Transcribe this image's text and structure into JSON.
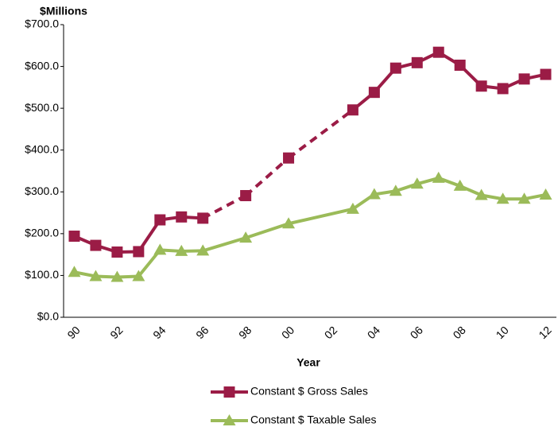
{
  "chart_data": {
    "type": "line",
    "title": "$Millions",
    "x_label": "Year",
    "categories": [
      "90",
      null,
      "92",
      null,
      "94",
      null,
      "96",
      null,
      "98",
      null,
      "00",
      null,
      "02",
      null,
      "04",
      null,
      "06",
      null,
      "08",
      null,
      "10",
      null,
      "12"
    ],
    "series": [
      {
        "name": "Constant $ Gross Sales",
        "color": "#9b1c46",
        "marker": "square",
        "gap_line": "dashed",
        "values": [
          194,
          172,
          156,
          157,
          233,
          240,
          237,
          null,
          291,
          null,
          381,
          null,
          null,
          496,
          538,
          596,
          609,
          634,
          603,
          553,
          547,
          570,
          581
        ]
      },
      {
        "name": "Constant $ Taxable Sales",
        "color": "#9bbb59",
        "marker": "triangle",
        "gap_line": "solid",
        "values": [
          108,
          98,
          96,
          98,
          161,
          158,
          159,
          null,
          190,
          null,
          224,
          null,
          null,
          259,
          294,
          302,
          319,
          333,
          314,
          292,
          283,
          283,
          293
        ]
      }
    ],
    "ylim": [
      0,
      700
    ],
    "yticks": [
      {
        "value": 0,
        "label": "$0.0"
      },
      {
        "value": 100,
        "label": "$100.0"
      },
      {
        "value": 200,
        "label": "$200.0"
      },
      {
        "value": 300,
        "label": "$300.0"
      },
      {
        "value": 400,
        "label": "$400.0"
      },
      {
        "value": 500,
        "label": "$500.0"
      },
      {
        "value": 600,
        "label": "$600.0"
      },
      {
        "value": 700,
        "label": "$700.0"
      }
    ],
    "grid": false,
    "legend": "bottom"
  }
}
